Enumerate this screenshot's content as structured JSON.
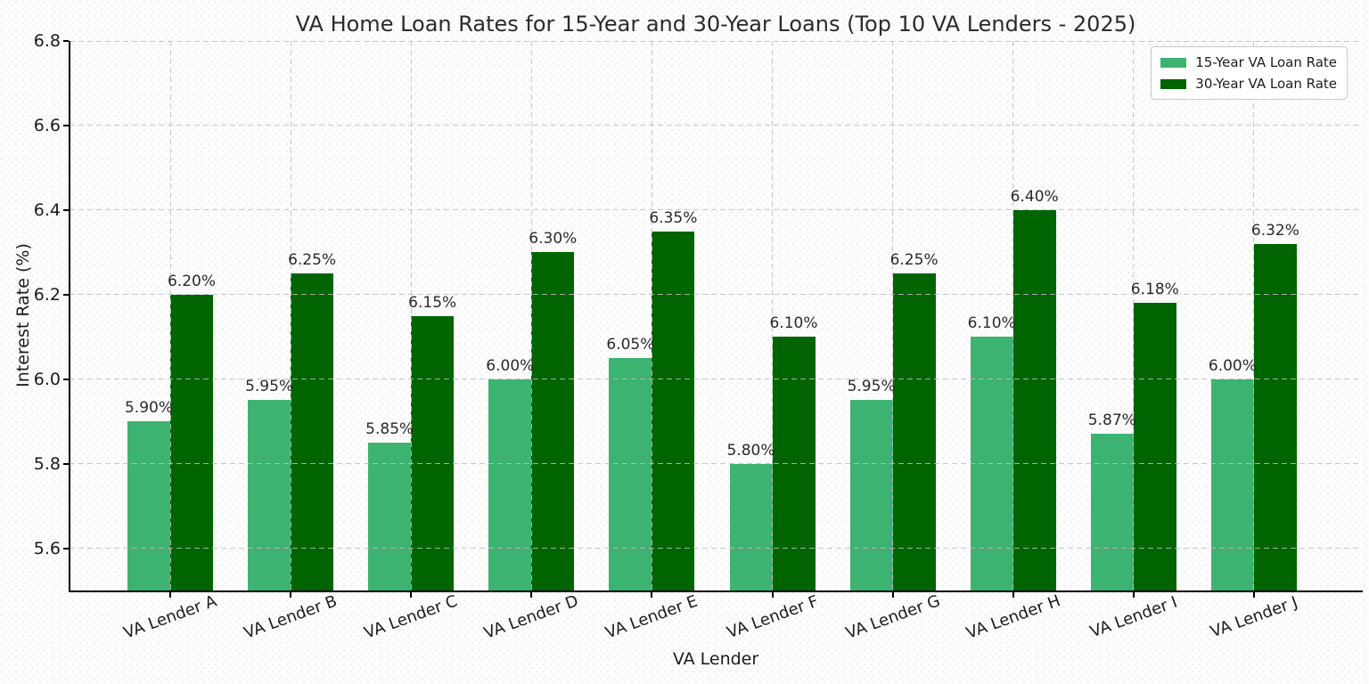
{
  "chart_data": {
    "type": "bar",
    "title": "VA Home Loan Rates for 15-Year and 30-Year Loans (Top 10 VA Lenders - 2025)",
    "xlabel": "VA Lender",
    "ylabel": "Interest Rate (%)",
    "categories": [
      "VA Lender A",
      "VA Lender B",
      "VA Lender C",
      "VA Lender D",
      "VA Lender E",
      "VA Lender F",
      "VA Lender G",
      "VA Lender H",
      "VA Lender I",
      "VA Lender J"
    ],
    "series": [
      {
        "name": "15-Year VA Loan Rate",
        "color": "#3CB371",
        "values": [
          5.9,
          5.95,
          5.85,
          6.0,
          6.05,
          5.8,
          5.95,
          6.1,
          5.87,
          6.0
        ],
        "labels": [
          "5.90%",
          "5.95%",
          "5.85%",
          "6.00%",
          "6.05%",
          "5.80%",
          "5.95%",
          "6.10%",
          "5.87%",
          "6.00%"
        ]
      },
      {
        "name": "30-Year VA Loan Rate",
        "color": "#006400",
        "values": [
          6.2,
          6.25,
          6.15,
          6.3,
          6.35,
          6.1,
          6.25,
          6.4,
          6.18,
          6.32
        ],
        "labels": [
          "6.20%",
          "6.25%",
          "6.15%",
          "6.30%",
          "6.35%",
          "6.10%",
          "6.25%",
          "6.40%",
          "6.18%",
          "6.32%"
        ]
      }
    ],
    "ylim": [
      5.5,
      6.8
    ],
    "yticks": [
      5.6,
      5.8,
      6.0,
      6.2,
      6.4,
      6.6,
      6.8
    ],
    "ytick_labels": [
      "5.6",
      "5.8",
      "6.0",
      "6.2",
      "6.4",
      "6.6",
      "6.8"
    ],
    "grid": true,
    "grid_style": "dashed",
    "legend_position": "upper right"
  }
}
